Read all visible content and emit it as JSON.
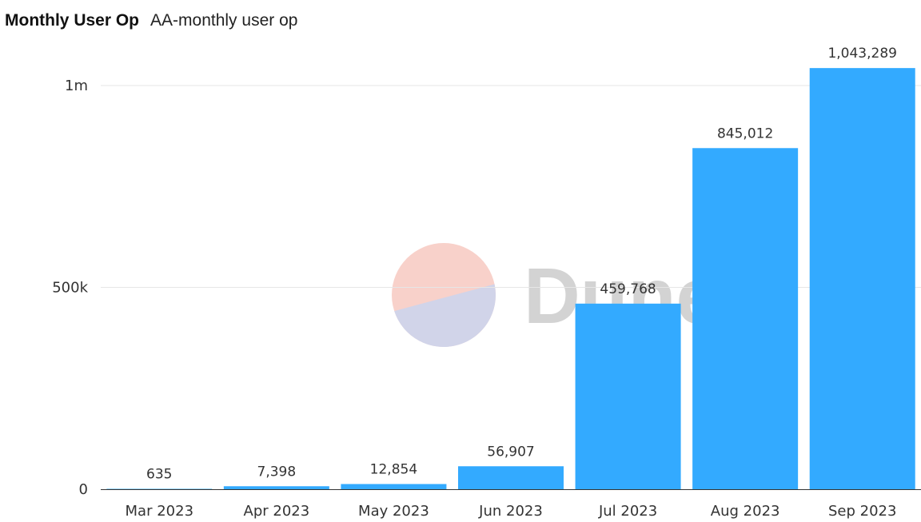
{
  "header": {
    "title": "Monthly User Op",
    "subtitle": "AA-monthly user op"
  },
  "watermark": {
    "text": "Dune",
    "colors": {
      "top": "#f7c9c1",
      "bottom": "#c9cde6",
      "text": "#cccccc"
    }
  },
  "colors": {
    "bar": "#33aaff",
    "grid": "#e6e6e6",
    "axis": "#333333"
  },
  "chart_data": {
    "type": "bar",
    "title": "Monthly User Op",
    "subtitle": "AA-monthly user op",
    "xlabel": "",
    "ylabel": "",
    "categories": [
      "Mar 2023",
      "Apr 2023",
      "May 2023",
      "Jun 2023",
      "Jul 2023",
      "Aug 2023",
      "Sep 2023"
    ],
    "values": [
      635,
      7398,
      12854,
      56907,
      459768,
      845012,
      1043289
    ],
    "data_labels": [
      "635",
      "7,398",
      "12,854",
      "56,907",
      "459,768",
      "845,012",
      "1,043,289"
    ],
    "y_ticks": [
      {
        "value": 0,
        "label": "0"
      },
      {
        "value": 500000,
        "label": "500k"
      },
      {
        "value": 1000000,
        "label": "1m"
      }
    ],
    "ylim": [
      0,
      1000000
    ],
    "grid": true,
    "legend": "none"
  }
}
